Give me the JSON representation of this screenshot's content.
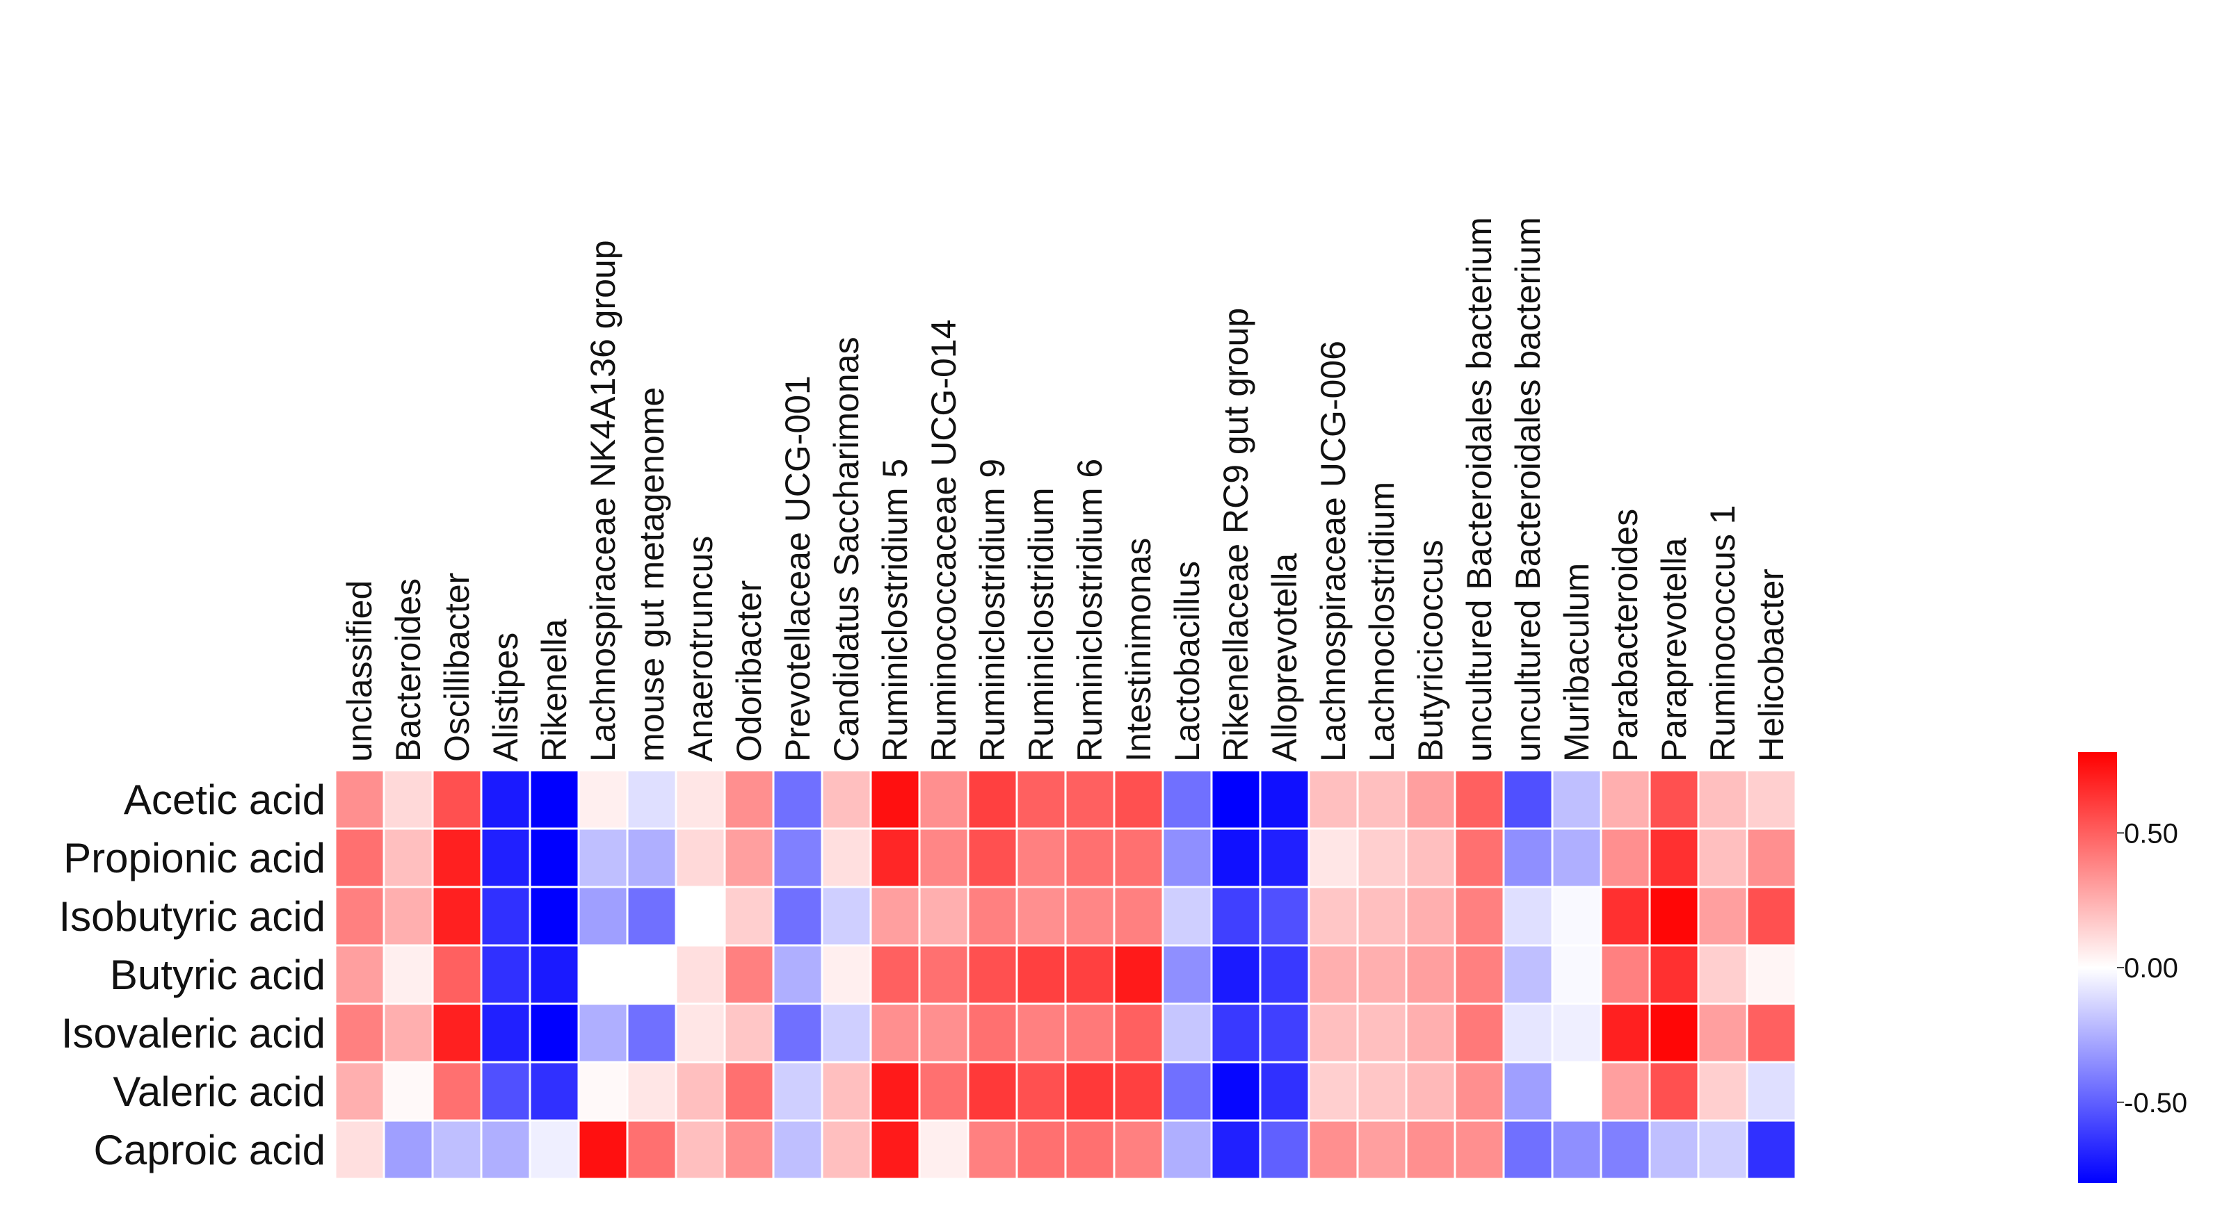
{
  "chart_data": {
    "type": "heatmap",
    "title": "",
    "rows": [
      "Acetic acid",
      "Propionic acid",
      "Isobutyric acid",
      "Butyric acid",
      "Isovaleric acid",
      "Valeric acid",
      "Caproic acid"
    ],
    "columns": [
      "unclassified",
      "Bacteroides",
      "Oscillibacter",
      "Alistipes",
      "Rikenella",
      "Lachnospiraceae NK4A136 group",
      "mouse gut metagenome",
      "Anaerotruncus",
      "Odoribacter",
      "Prevotellaceae UCG-001",
      "Candidatus Saccharimonas",
      "Ruminiclostridium 5",
      "Ruminococcaceae UCG-014",
      "Ruminiclostridium 9",
      "Ruminiclostridium",
      "Ruminiclostridium 6",
      "Intestinimonas",
      "Lactobacillus",
      "Rikenellaceae RC9 gut group",
      "Alloprevotella",
      "Lachnospiraceae UCG-006",
      "Lachnoclostridium",
      "Butyricicoccus",
      "uncultured Bacteroidales bacterium",
      "uncultured Bacteroidales bacterium",
      "Muribaculum",
      "Parabacteroides",
      "Paraprevotella",
      "Ruminococcus 1",
      "Helicobacter"
    ],
    "values": [
      [
        0.35,
        0.12,
        0.55,
        -0.72,
        -0.8,
        0.05,
        -0.1,
        0.08,
        0.35,
        -0.45,
        0.2,
        0.75,
        0.35,
        0.6,
        0.5,
        0.5,
        0.55,
        -0.45,
        -0.85,
        -0.75,
        0.2,
        0.2,
        0.3,
        0.5,
        -0.55,
        -0.2,
        0.25,
        0.55,
        0.2,
        0.15
      ],
      [
        0.45,
        0.2,
        0.7,
        -0.7,
        -0.8,
        -0.2,
        -0.25,
        0.12,
        0.3,
        -0.4,
        0.1,
        0.68,
        0.38,
        0.55,
        0.4,
        0.45,
        0.45,
        -0.35,
        -0.75,
        -0.7,
        0.08,
        0.15,
        0.2,
        0.45,
        -0.35,
        -0.25,
        0.35,
        0.65,
        0.2,
        0.35
      ],
      [
        0.4,
        0.25,
        0.7,
        -0.65,
        -0.82,
        -0.3,
        -0.45,
        0.0,
        0.15,
        -0.45,
        -0.15,
        0.3,
        0.25,
        0.4,
        0.35,
        0.38,
        0.4,
        -0.15,
        -0.6,
        -0.55,
        0.18,
        0.2,
        0.25,
        0.4,
        -0.1,
        -0.02,
        0.65,
        0.78,
        0.3,
        0.55
      ],
      [
        0.3,
        0.05,
        0.5,
        -0.65,
        -0.72,
        0.0,
        0.0,
        0.1,
        0.4,
        -0.25,
        0.05,
        0.5,
        0.45,
        0.55,
        0.6,
        0.6,
        0.72,
        -0.35,
        -0.72,
        -0.62,
        0.25,
        0.25,
        0.3,
        0.4,
        -0.2,
        -0.02,
        0.4,
        0.65,
        0.15,
        0.03
      ],
      [
        0.4,
        0.25,
        0.7,
        -0.7,
        -0.8,
        -0.25,
        -0.45,
        0.08,
        0.18,
        -0.45,
        -0.15,
        0.35,
        0.35,
        0.45,
        0.4,
        0.42,
        0.5,
        -0.18,
        -0.62,
        -0.6,
        0.2,
        0.2,
        0.25,
        0.42,
        -0.08,
        -0.05,
        0.7,
        0.78,
        0.3,
        0.5
      ],
      [
        0.25,
        0.02,
        0.45,
        -0.55,
        -0.65,
        0.02,
        0.08,
        0.2,
        0.45,
        -0.15,
        0.2,
        0.72,
        0.45,
        0.62,
        0.55,
        0.62,
        0.6,
        -0.45,
        -0.78,
        -0.65,
        0.15,
        0.18,
        0.22,
        0.35,
        -0.3,
        0.0,
        0.3,
        0.55,
        0.15,
        -0.1
      ],
      [
        0.1,
        -0.3,
        -0.2,
        -0.25,
        -0.05,
        0.75,
        0.45,
        0.2,
        0.35,
        -0.2,
        0.2,
        0.72,
        0.05,
        0.4,
        0.45,
        0.45,
        0.4,
        -0.25,
        -0.7,
        -0.5,
        0.35,
        0.3,
        0.35,
        0.35,
        -0.45,
        -0.35,
        -0.4,
        -0.2,
        -0.15,
        -0.65
      ]
    ],
    "color_scale": {
      "min": -0.8,
      "max": 0.8,
      "low": "#0000ff",
      "mid": "#ffffff",
      "high": "#ff0000"
    },
    "colorbar_ticks": [
      0.5,
      0.0,
      -0.5
    ],
    "colorbar_labels": [
      "0.50",
      "0.00",
      "-0.50"
    ],
    "grid_color": "#ffffff"
  }
}
